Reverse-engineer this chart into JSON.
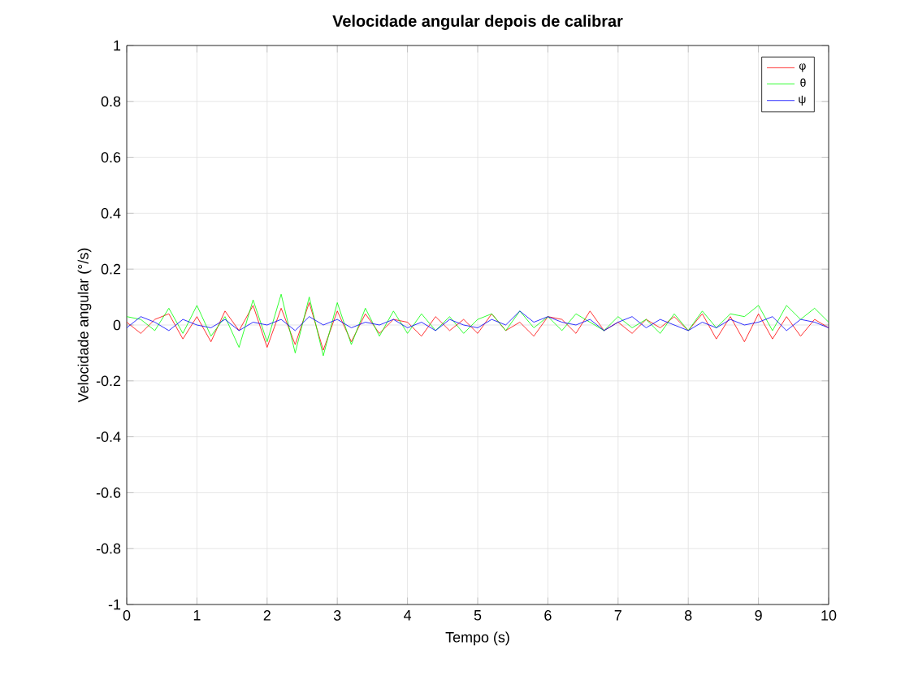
{
  "chart_data": {
    "type": "line",
    "title": "Velocidade angular depois de calibrar",
    "xlabel": "Tempo (s)",
    "ylabel": "Velocidade angular (°/s)",
    "x": [
      0,
      0.2,
      0.4,
      0.6,
      0.8,
      1,
      1.2,
      1.4,
      1.6,
      1.8,
      2,
      2.2,
      2.4,
      2.6,
      2.8,
      3,
      3.2,
      3.4,
      3.6,
      3.8,
      4,
      4.2,
      4.4,
      4.6,
      4.8,
      5,
      5.2,
      5.4,
      5.6,
      5.8,
      6,
      6.2,
      6.4,
      6.6,
      6.8,
      7,
      7.2,
      7.4,
      7.6,
      7.8,
      8,
      8.2,
      8.4,
      8.6,
      8.8,
      9,
      9.2,
      9.4,
      9.6,
      9.8,
      10
    ],
    "series": [
      {
        "name": "φ",
        "color": "#ff0000",
        "values": [
          0.01,
          -0.03,
          0.02,
          0.04,
          -0.05,
          0.03,
          -0.06,
          0.05,
          -0.02,
          0.07,
          -0.08,
          0.06,
          -0.07,
          0.08,
          -0.09,
          0.05,
          -0.06,
          0.04,
          -0.03,
          0.02,
          0.01,
          -0.04,
          0.03,
          -0.02,
          0.02,
          -0.03,
          0.04,
          -0.02,
          0.01,
          -0.04,
          0.03,
          0.02,
          -0.03,
          0.05,
          -0.02,
          0.01,
          -0.03,
          0.02,
          -0.01,
          0.03,
          -0.02,
          0.04,
          -0.05,
          0.03,
          -0.06,
          0.04,
          -0.05,
          0.03,
          -0.04,
          0.02,
          -0.01
        ]
      },
      {
        "name": "θ",
        "color": "#00ff00",
        "values": [
          0.03,
          0.02,
          -0.02,
          0.06,
          -0.03,
          0.07,
          -0.04,
          0.03,
          -0.08,
          0.09,
          -0.06,
          0.11,
          -0.1,
          0.1,
          -0.11,
          0.08,
          -0.07,
          0.06,
          -0.04,
          0.05,
          -0.03,
          0.04,
          -0.02,
          0.03,
          -0.03,
          0.02,
          0.04,
          -0.02,
          0.05,
          -0.01,
          0.03,
          -0.02,
          0.04,
          0.01,
          -0.02,
          0.03,
          -0.01,
          0.02,
          -0.03,
          0.04,
          -0.02,
          0.05,
          -0.01,
          0.04,
          0.03,
          0.07,
          -0.02,
          0.07,
          0.02,
          0.06,
          0.01
        ]
      },
      {
        "name": "ψ",
        "color": "#0000ff",
        "values": [
          -0.01,
          0.03,
          0.01,
          -0.02,
          0.02,
          0.0,
          -0.01,
          0.02,
          -0.02,
          0.01,
          0.0,
          0.02,
          -0.02,
          0.03,
          0.0,
          0.02,
          -0.01,
          0.01,
          0.0,
          0.02,
          -0.01,
          0.01,
          -0.02,
          0.02,
          0.0,
          -0.01,
          0.02,
          0.0,
          0.05,
          0.01,
          0.03,
          0.01,
          0.0,
          0.02,
          -0.02,
          0.01,
          0.03,
          -0.01,
          0.02,
          0.0,
          -0.02,
          0.01,
          -0.01,
          0.02,
          0.0,
          0.01,
          0.03,
          -0.02,
          0.02,
          0.01,
          -0.01
        ]
      }
    ],
    "xlim": [
      0,
      10
    ],
    "ylim": [
      -1,
      1
    ],
    "xticks": [
      0,
      1,
      2,
      3,
      4,
      5,
      6,
      7,
      8,
      9,
      10
    ],
    "yticks": [
      -1,
      -0.8,
      -0.6,
      -0.4,
      -0.2,
      0,
      0.2,
      0.4,
      0.6,
      0.8,
      1
    ],
    "grid": true,
    "legend": "top right",
    "marker": "none",
    "line_style": "solid"
  }
}
